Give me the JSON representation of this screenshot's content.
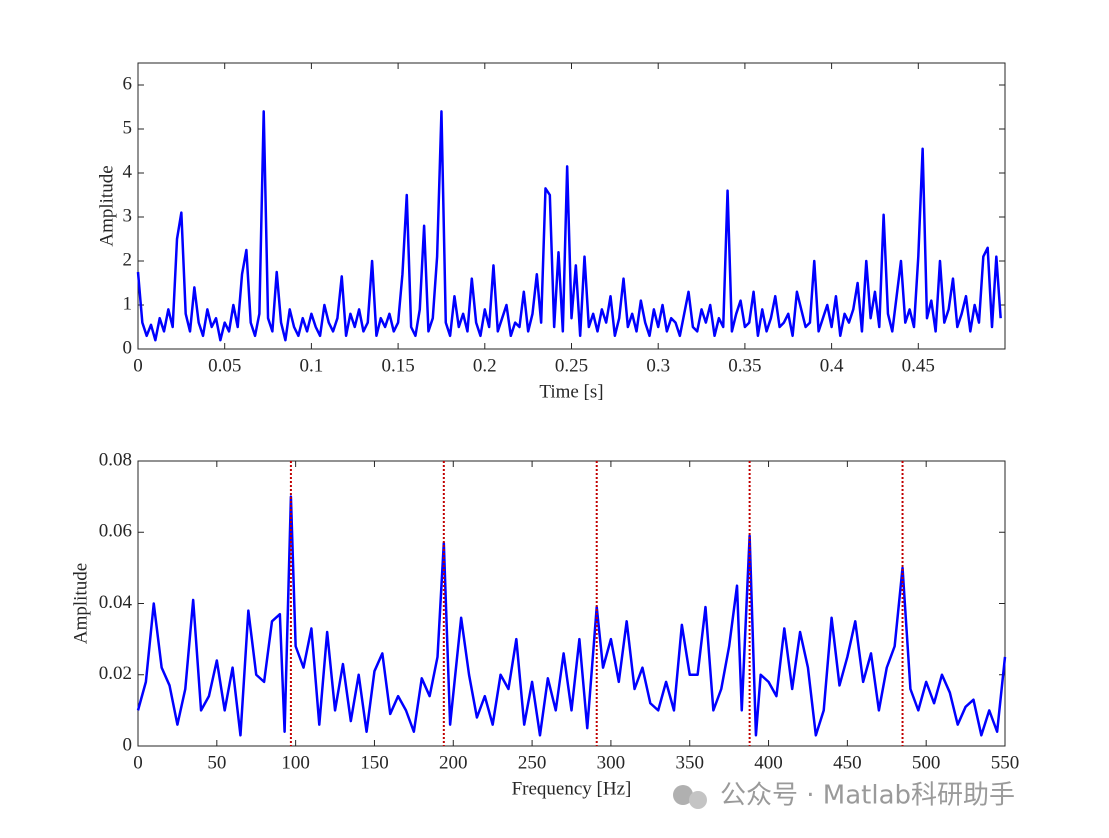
{
  "chart_data": [
    {
      "type": "line",
      "xlabel": "Time [s]",
      "ylabel": "Amplitude",
      "x": [
        0,
        0.0025,
        0.005,
        0.0075,
        0.01,
        0.0125,
        0.015,
        0.0175,
        0.02,
        0.0225,
        0.025,
        0.0275,
        0.03,
        0.0325,
        0.035,
        0.0375,
        0.04,
        0.0425,
        0.045,
        0.0475,
        0.05,
        0.0525,
        0.055,
        0.0575,
        0.06,
        0.0625,
        0.065,
        0.0675,
        0.07,
        0.0725,
        0.075,
        0.0775,
        0.08,
        0.0825,
        0.085,
        0.0875,
        0.09,
        0.0925,
        0.095,
        0.0975,
        0.1,
        0.1025,
        0.105,
        0.1075,
        0.11,
        0.1125,
        0.115,
        0.1175,
        0.12,
        0.1225,
        0.125,
        0.1275,
        0.13,
        0.1325,
        0.135,
        0.1375,
        0.14,
        0.1425,
        0.145,
        0.1475,
        0.15,
        0.1525,
        0.155,
        0.1575,
        0.16,
        0.1625,
        0.165,
        0.1675,
        0.17,
        0.1725,
        0.175,
        0.1775,
        0.18,
        0.1825,
        0.185,
        0.1875,
        0.19,
        0.1925,
        0.195,
        0.1975,
        0.2,
        0.2025,
        0.205,
        0.2075,
        0.21,
        0.2125,
        0.215,
        0.2175,
        0.22,
        0.2225,
        0.225,
        0.2275,
        0.23,
        0.2325,
        0.235,
        0.2375,
        0.24,
        0.2425,
        0.245,
        0.2475,
        0.25,
        0.2525,
        0.255,
        0.2575,
        0.26,
        0.2625,
        0.265,
        0.2675,
        0.27,
        0.2725,
        0.275,
        0.2775,
        0.28,
        0.2825,
        0.285,
        0.2875,
        0.29,
        0.2925,
        0.295,
        0.2975,
        0.3,
        0.3025,
        0.305,
        0.3075,
        0.31,
        0.3125,
        0.315,
        0.3175,
        0.32,
        0.3225,
        0.325,
        0.3275,
        0.33,
        0.3325,
        0.335,
        0.3375,
        0.34,
        0.3425,
        0.345,
        0.3475,
        0.35,
        0.3525,
        0.355,
        0.3575,
        0.36,
        0.3625,
        0.365,
        0.3675,
        0.37,
        0.3725,
        0.375,
        0.3775,
        0.38,
        0.3825,
        0.385,
        0.3875,
        0.39,
        0.3925,
        0.395,
        0.3975,
        0.4,
        0.4025,
        0.405,
        0.4075,
        0.41,
        0.4125,
        0.415,
        0.4175,
        0.42,
        0.4225,
        0.425,
        0.4275,
        0.43,
        0.4325,
        0.435,
        0.4375,
        0.44,
        0.4425,
        0.445,
        0.4475,
        0.45,
        0.4525,
        0.455,
        0.4575,
        0.46,
        0.4625,
        0.465,
        0.4675,
        0.47,
        0.4725,
        0.475,
        0.4775,
        0.48,
        0.4825,
        0.485,
        0.4875,
        0.49,
        0.4925,
        0.495,
        0.4975
      ],
      "series": [
        {
          "color": "#0000ff",
          "values": [
            1.75,
            0.6,
            0.3,
            0.55,
            0.2,
            0.7,
            0.4,
            0.9,
            0.5,
            2.5,
            3.1,
            0.8,
            0.4,
            1.4,
            0.6,
            0.3,
            0.9,
            0.5,
            0.7,
            0.2,
            0.6,
            0.4,
            1.0,
            0.5,
            1.7,
            2.25,
            0.6,
            0.3,
            0.8,
            5.4,
            0.7,
            0.4,
            1.75,
            0.6,
            0.2,
            0.9,
            0.5,
            0.3,
            0.7,
            0.4,
            0.8,
            0.5,
            0.3,
            1.0,
            0.6,
            0.4,
            0.7,
            1.65,
            0.3,
            0.8,
            0.5,
            0.9,
            0.4,
            0.6,
            2.0,
            0.3,
            0.7,
            0.5,
            0.8,
            0.4,
            0.6,
            1.7,
            3.5,
            0.5,
            0.3,
            0.9,
            2.8,
            0.4,
            0.7,
            2.1,
            5.4,
            0.6,
            0.3,
            1.2,
            0.5,
            0.8,
            0.4,
            1.6,
            0.6,
            0.3,
            0.9,
            0.5,
            1.9,
            0.4,
            0.7,
            1.0,
            0.3,
            0.6,
            0.5,
            1.3,
            0.4,
            0.8,
            1.7,
            0.6,
            3.65,
            3.5,
            0.5,
            2.2,
            0.4,
            4.15,
            0.7,
            1.9,
            0.3,
            2.1,
            0.5,
            0.8,
            0.4,
            0.9,
            0.6,
            1.2,
            0.3,
            0.7,
            1.6,
            0.5,
            0.8,
            0.4,
            1.1,
            0.6,
            0.3,
            0.9,
            0.5,
            1.0,
            0.4,
            0.7,
            0.6,
            0.3,
            0.8,
            1.3,
            0.5,
            0.4,
            0.9,
            0.6,
            1.0,
            0.3,
            0.7,
            0.5,
            3.6,
            0.4,
            0.8,
            1.1,
            0.5,
            0.6,
            1.3,
            0.3,
            0.9,
            0.4,
            0.7,
            1.2,
            0.5,
            0.6,
            0.8,
            0.3,
            1.3,
            0.9,
            0.5,
            0.6,
            2.0,
            0.4,
            0.7,
            1.0,
            0.5,
            1.2,
            0.3,
            0.8,
            0.6,
            0.9,
            1.5,
            0.4,
            2.0,
            0.7,
            1.3,
            0.5,
            3.05,
            0.8,
            0.4,
            1.2,
            2.0,
            0.6,
            0.9,
            0.5,
            2.1,
            4.55,
            0.7,
            1.1,
            0.4,
            2.0,
            0.6,
            0.9,
            1.6,
            0.5,
            0.8,
            1.2,
            0.4,
            1.0,
            0.6,
            2.1,
            2.3,
            0.5,
            2.1,
            0.7
          ]
        }
      ],
      "xlim": [
        0,
        0.5
      ],
      "ylim": [
        0,
        6.5
      ],
      "xticks": [
        0,
        0.05,
        0.1,
        0.15,
        0.2,
        0.25,
        0.3,
        0.35,
        0.4,
        0.45
      ],
      "yticks": [
        0,
        1,
        2,
        3,
        4,
        5,
        6
      ]
    },
    {
      "type": "line",
      "xlabel": "Frequency [Hz]",
      "ylabel": "Amplitude",
      "x": [
        0,
        5,
        10,
        15,
        20,
        25,
        30,
        35,
        40,
        45,
        50,
        55,
        60,
        65,
        70,
        75,
        80,
        85,
        90,
        93,
        97,
        100,
        105,
        110,
        115,
        120,
        125,
        130,
        135,
        140,
        145,
        150,
        155,
        160,
        165,
        170,
        175,
        180,
        185,
        190,
        194,
        198,
        205,
        210,
        215,
        220,
        225,
        230,
        235,
        240,
        245,
        250,
        255,
        260,
        265,
        270,
        275,
        280,
        285,
        291,
        295,
        300,
        305,
        310,
        315,
        320,
        325,
        330,
        335,
        340,
        345,
        350,
        355,
        360,
        365,
        370,
        375,
        380,
        383,
        388,
        392,
        395,
        400,
        405,
        410,
        415,
        420,
        425,
        430,
        435,
        440,
        445,
        450,
        455,
        460,
        465,
        470,
        475,
        480,
        485,
        490,
        495,
        500,
        505,
        510,
        515,
        520,
        525,
        530,
        535,
        540,
        545,
        550
      ],
      "series": [
        {
          "color": "#0000ff",
          "values": [
            0.01,
            0.018,
            0.04,
            0.022,
            0.017,
            0.006,
            0.016,
            0.041,
            0.01,
            0.014,
            0.024,
            0.01,
            0.022,
            0.003,
            0.038,
            0.02,
            0.018,
            0.035,
            0.037,
            0.004,
            0.07,
            0.028,
            0.022,
            0.033,
            0.006,
            0.032,
            0.01,
            0.023,
            0.007,
            0.02,
            0.004,
            0.021,
            0.026,
            0.009,
            0.014,
            0.01,
            0.004,
            0.019,
            0.014,
            0.025,
            0.057,
            0.006,
            0.036,
            0.02,
            0.008,
            0.014,
            0.006,
            0.02,
            0.016,
            0.03,
            0.006,
            0.018,
            0.003,
            0.019,
            0.01,
            0.026,
            0.01,
            0.03,
            0.005,
            0.039,
            0.022,
            0.03,
            0.018,
            0.035,
            0.016,
            0.022,
            0.012,
            0.01,
            0.018,
            0.01,
            0.034,
            0.02,
            0.02,
            0.039,
            0.01,
            0.016,
            0.028,
            0.045,
            0.01,
            0.059,
            0.003,
            0.02,
            0.018,
            0.014,
            0.033,
            0.016,
            0.032,
            0.022,
            0.003,
            0.01,
            0.036,
            0.017,
            0.025,
            0.035,
            0.018,
            0.026,
            0.01,
            0.022,
            0.028,
            0.05,
            0.016,
            0.01,
            0.018,
            0.012,
            0.02,
            0.015,
            0.006,
            0.011,
            0.013,
            0.003,
            0.01,
            0.004,
            0.025
          ]
        }
      ],
      "vlines": [
        97,
        194,
        291,
        388,
        485
      ],
      "vline_color": "#c00000",
      "xlim": [
        0,
        550
      ],
      "ylim": [
        0,
        0.08
      ],
      "xticks": [
        0,
        50,
        100,
        150,
        200,
        250,
        300,
        350,
        400,
        450,
        500,
        550
      ],
      "yticks": [
        0,
        0.02,
        0.04,
        0.06,
        0.08
      ]
    }
  ],
  "watermark": "公众号 · Matlab科研助手"
}
